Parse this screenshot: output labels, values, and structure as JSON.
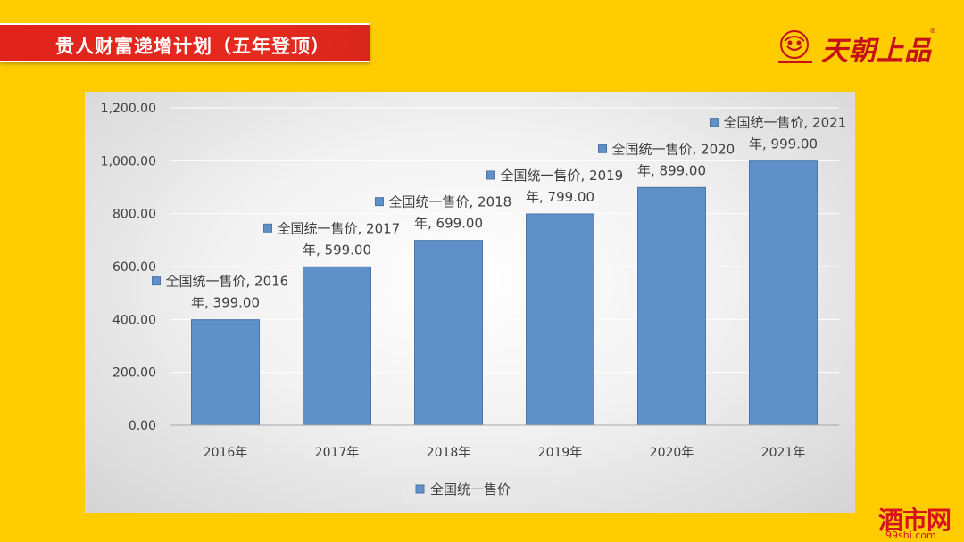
{
  "slide": {
    "title": "贵人财富递增计划（五年登顶）",
    "background_color": "#FFCC00",
    "banner_color": "#E0231B"
  },
  "logo": {
    "brand_text": "天朝上品",
    "reg_mark": "®",
    "icon": "company-emblem-icon"
  },
  "watermark": {
    "main": "酒市网",
    "sub": "99shi.com"
  },
  "chart_data": {
    "type": "bar",
    "categories": [
      "2016年",
      "2017年",
      "2018年",
      "2019年",
      "2020年",
      "2021年"
    ],
    "series": [
      {
        "name": "全国统一售价",
        "values": [
          399,
          599,
          699,
          799,
          899,
          999
        ],
        "color": "#6090C8"
      }
    ],
    "data_labels": [
      {
        "line1": "全国统一售价, 2016",
        "line2": "年, 399.00"
      },
      {
        "line1": "全国统一售价, 2017",
        "line2": "年, 599.00"
      },
      {
        "line1": "全国统一售价, 2018",
        "line2": "年, 699.00"
      },
      {
        "line1": "全国统一售价, 2019",
        "line2": "年, 799.00"
      },
      {
        "line1": "全国统一售价, 2020",
        "line2": "年, 899.00"
      },
      {
        "line1": "全国统一售价, 2021",
        "line2": "年, 999.00"
      }
    ],
    "y_ticks": [
      "0.00",
      "200.00",
      "400.00",
      "600.00",
      "800.00",
      "1,000.00",
      "1,200.00"
    ],
    "ylim": [
      0,
      1200
    ],
    "grid": true,
    "legend_position": "bottom",
    "title": "",
    "xlabel": "",
    "ylabel": ""
  }
}
